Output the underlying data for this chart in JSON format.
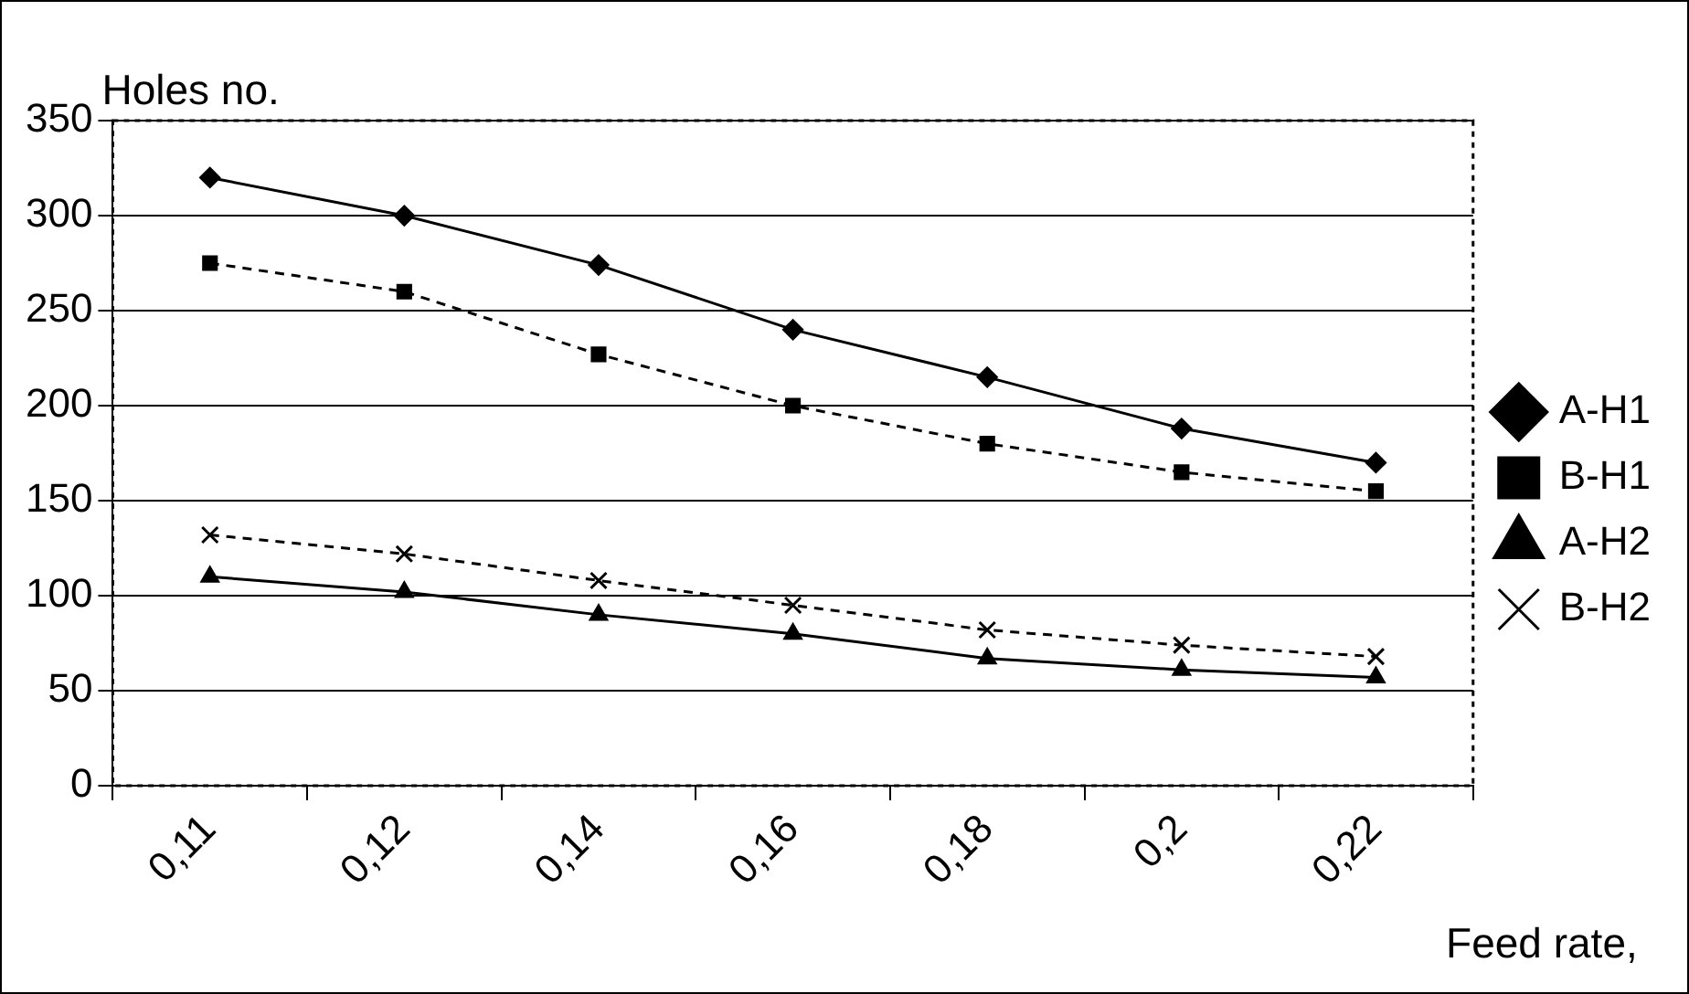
{
  "chart_data": {
    "type": "line",
    "ylabel": "Holes no.",
    "xlabel": "Feed rate,",
    "categories": [
      "0,11",
      "0,12",
      "0,14",
      "0,16",
      "0,18",
      "0,2",
      "0,22"
    ],
    "series": [
      {
        "name": "A-H1",
        "color": "#000000",
        "marker": "diamond",
        "line_style": "solid",
        "values": [
          320,
          300,
          274,
          240,
          215,
          188,
          170
        ]
      },
      {
        "name": "B-H1",
        "color": "#000000",
        "marker": "square",
        "line_style": "dashed",
        "values": [
          275,
          260,
          227,
          200,
          180,
          165,
          155
        ]
      },
      {
        "name": "A-H2",
        "color": "#000000",
        "marker": "triangle",
        "line_style": "solid",
        "values": [
          110,
          102,
          90,
          80,
          67,
          61,
          57
        ]
      },
      {
        "name": "B-H2",
        "color": "#000000",
        "marker": "cross",
        "line_style": "dashed",
        "values": [
          132,
          122,
          108,
          95,
          82,
          74,
          68
        ]
      }
    ],
    "ylim": [
      0,
      350
    ],
    "yticks": [
      0,
      50,
      100,
      150,
      200,
      250,
      300,
      350
    ],
    "grid": "y",
    "legend": "right"
  }
}
